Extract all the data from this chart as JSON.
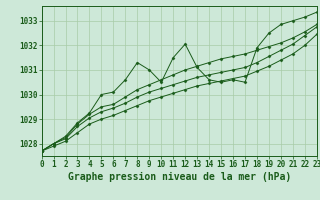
{
  "bg_color": "#cde8d8",
  "grid_color": "#a8cca8",
  "line_color": "#1a5c1a",
  "marker_color": "#1a5c1a",
  "title": "Graphe pression niveau de la mer (hPa)",
  "title_fontsize": 7.0,
  "tick_fontsize": 5.5,
  "xlim": [
    0,
    23
  ],
  "ylim": [
    1027.5,
    1033.6
  ],
  "yticks": [
    1028,
    1029,
    1030,
    1031,
    1032,
    1033
  ],
  "xticks": [
    0,
    1,
    2,
    3,
    4,
    5,
    6,
    7,
    8,
    9,
    10,
    11,
    12,
    13,
    14,
    15,
    16,
    17,
    18,
    19,
    20,
    21,
    22,
    23
  ],
  "series": [
    [
      1027.7,
      1028.0,
      1028.3,
      1028.85,
      1029.25,
      1030.0,
      1030.1,
      1030.6,
      1031.3,
      1031.0,
      1030.5,
      1031.5,
      1032.05,
      1031.1,
      1030.6,
      1030.5,
      1030.6,
      1030.5,
      1031.9,
      1032.5,
      1032.85,
      1033.0,
      1033.15,
      1033.35
    ],
    [
      1027.7,
      1028.0,
      1028.25,
      1028.8,
      1029.2,
      1029.5,
      1029.6,
      1029.9,
      1030.2,
      1030.4,
      1030.6,
      1030.8,
      1031.0,
      1031.15,
      1031.3,
      1031.45,
      1031.55,
      1031.65,
      1031.8,
      1031.95,
      1032.1,
      1032.3,
      1032.55,
      1032.85
    ],
    [
      1027.7,
      1028.0,
      1028.2,
      1028.7,
      1029.05,
      1029.3,
      1029.45,
      1029.65,
      1029.9,
      1030.1,
      1030.25,
      1030.4,
      1030.55,
      1030.7,
      1030.8,
      1030.9,
      1031.0,
      1031.1,
      1031.3,
      1031.55,
      1031.8,
      1032.05,
      1032.4,
      1032.75
    ],
    [
      1027.7,
      1027.9,
      1028.1,
      1028.45,
      1028.8,
      1029.0,
      1029.15,
      1029.35,
      1029.55,
      1029.75,
      1029.9,
      1030.05,
      1030.2,
      1030.35,
      1030.45,
      1030.55,
      1030.65,
      1030.75,
      1030.95,
      1031.15,
      1031.4,
      1031.65,
      1032.0,
      1032.45
    ]
  ]
}
